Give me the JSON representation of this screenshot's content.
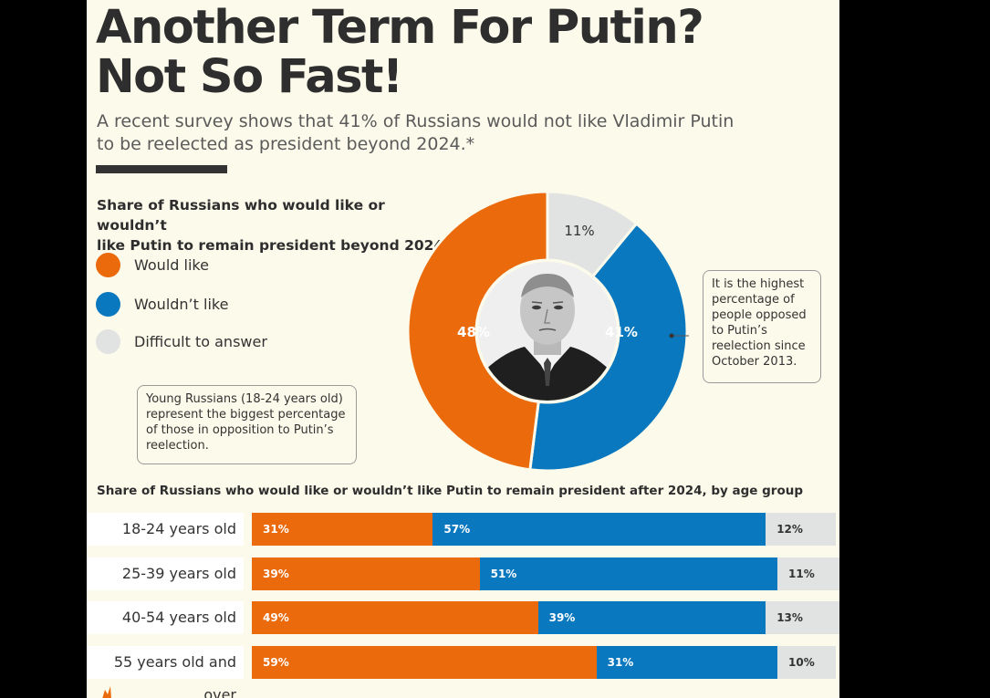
{
  "title_line1": "Another Term For Putin?",
  "title_line2": "Not So Fast!",
  "subtitle_line1": "A recent survey shows that 41% of Russians would not like Vladimir Putin",
  "subtitle_line2": "to be reelected as president beyond 2024.*",
  "donut_title_line1": "Share of Russians who would like or wouldn’t",
  "donut_title_line2": "like Putin to remain president beyond 2024",
  "note_left": "Young Russians (18-24 years old) represent the biggest percentage of those in opposition to Putin’s reelection.",
  "note_right": "It is the highest percentage of people opposed to Putin’s reelection since October 2013.",
  "bar_title": "Share of Russians who would like or wouldn’t like Putin to remain president after 2024, by age group",
  "colors": {
    "would_like": "#ea6a0c",
    "would_not_like": "#0a78bf",
    "difficult": "#e1e2e2",
    "background": "#fcfaea"
  },
  "chart_data": [
    {
      "type": "pie",
      "variant": "donut",
      "title": "Share of Russians who would like or wouldn’t like Putin to remain president beyond 2024",
      "legend_position": "left",
      "slices": [
        {
          "label": "Would like",
          "value": 48,
          "display": "48%"
        },
        {
          "label": "Wouldn’t like",
          "value": 41,
          "display": "41%"
        },
        {
          "label": "Difficult to answer",
          "value": 11,
          "display": "11%"
        }
      ]
    },
    {
      "type": "bar",
      "orientation": "horizontal",
      "stacked": true,
      "title": "Share of Russians who would like or wouldn’t like Putin to remain president after 2024, by age group",
      "categories": [
        "18-24 years old",
        "25-39 years old",
        "40-54 years old",
        "55 years old and over"
      ],
      "series": [
        {
          "name": "Would like",
          "values": [
            31,
            39,
            49,
            59
          ],
          "labels": [
            "31%",
            "39%",
            "49%",
            "59%"
          ]
        },
        {
          "name": "Wouldn’t like",
          "values": [
            57,
            51,
            39,
            31
          ],
          "labels": [
            "57%",
            "51%",
            "39%",
            "31%"
          ]
        },
        {
          "name": "Difficult to answer",
          "values": [
            12,
            11,
            13,
            10
          ],
          "labels": [
            "12%",
            "11%",
            "13%",
            "10%"
          ]
        }
      ]
    }
  ]
}
